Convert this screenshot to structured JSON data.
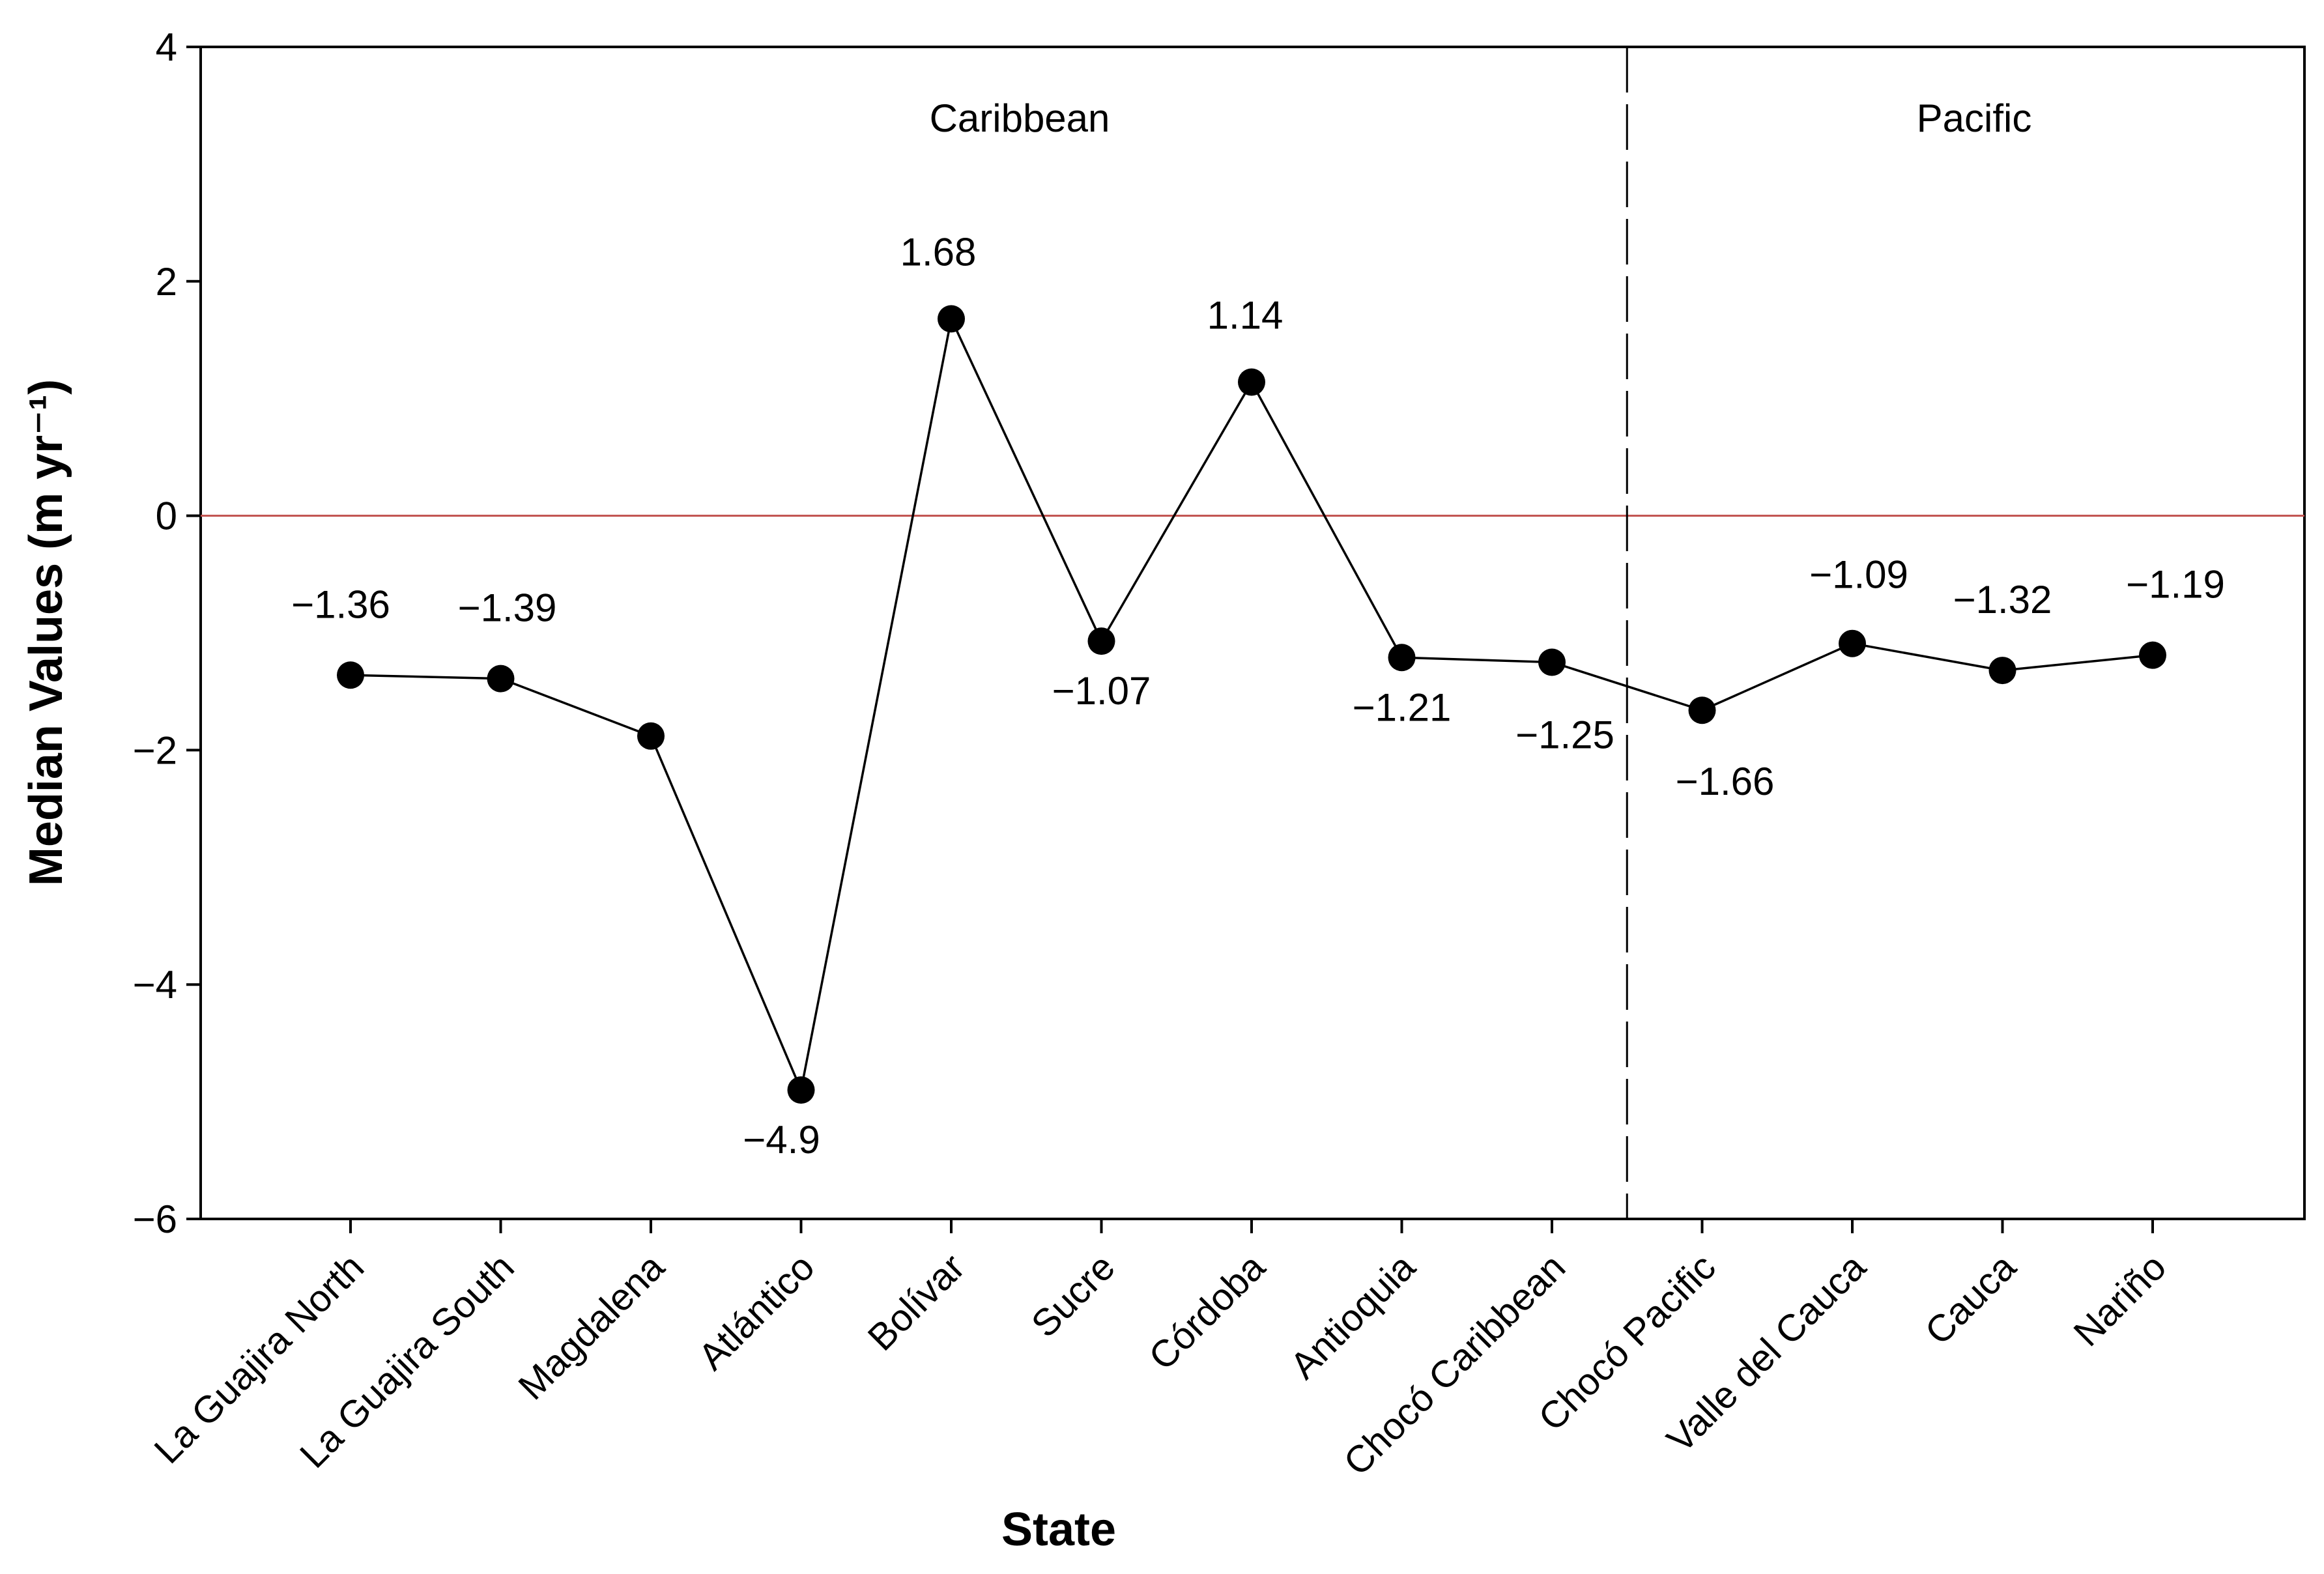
{
  "chart_data": {
    "type": "line",
    "title": "",
    "xlabel": "State",
    "ylabel": "Median Values (m yr⁻¹)",
    "ylim": [
      -6,
      4
    ],
    "yticks": [
      -6,
      -4,
      -2,
      0,
      2,
      4
    ],
    "ytick_labels": [
      "−6",
      "−4",
      "−2",
      "0",
      "2",
      "4"
    ],
    "grid": false,
    "legend": null,
    "categories": [
      "La Guajira North",
      "La Guajira South",
      "Magdalena",
      "Atlántico",
      "Bolívar",
      "Sucre",
      "Córdoba",
      "Antioquia",
      "Chocó Caribbean",
      "Chocó Pacific",
      "Valle del Cauca",
      "Cauca",
      "Nariño"
    ],
    "series": [
      {
        "name": "Median Values",
        "values": [
          -1.36,
          -1.39,
          -1.88,
          -4.9,
          1.68,
          -1.07,
          1.14,
          -1.21,
          -1.25,
          -1.66,
          -1.09,
          -1.32,
          -1.19
        ],
        "color": "#000000",
        "marker": "circle"
      }
    ],
    "data_labels": [
      {
        "index": 0,
        "text": "−1.36",
        "placement": "above"
      },
      {
        "index": 1,
        "text": "−1.39",
        "placement": "above"
      },
      {
        "index": 3,
        "text": "−4.9",
        "placement": "below"
      },
      {
        "index": 4,
        "text": "1.68",
        "placement": "above"
      },
      {
        "index": 5,
        "text": "−1.07",
        "placement": "below"
      },
      {
        "index": 6,
        "text": "1.14",
        "placement": "above"
      },
      {
        "index": 7,
        "text": "−1.21",
        "placement": "below"
      },
      {
        "index": 8,
        "text": "−1.25",
        "placement": "below"
      },
      {
        "index": 9,
        "text": "−1.66",
        "placement": "below"
      },
      {
        "index": 10,
        "text": "−1.09",
        "placement": "above"
      },
      {
        "index": 11,
        "text": "−1.32",
        "placement": "above"
      },
      {
        "index": 12,
        "text": "−1.19",
        "placement": "above"
      }
    ],
    "reference_line": {
      "y": 0,
      "color": "#c0504d"
    },
    "regions": [
      {
        "label": "Caribbean",
        "from_index": 0,
        "to_index": 8
      },
      {
        "label": "Pacific",
        "from_index": 9,
        "to_index": 12
      }
    ],
    "divider_between": [
      8,
      9
    ]
  }
}
